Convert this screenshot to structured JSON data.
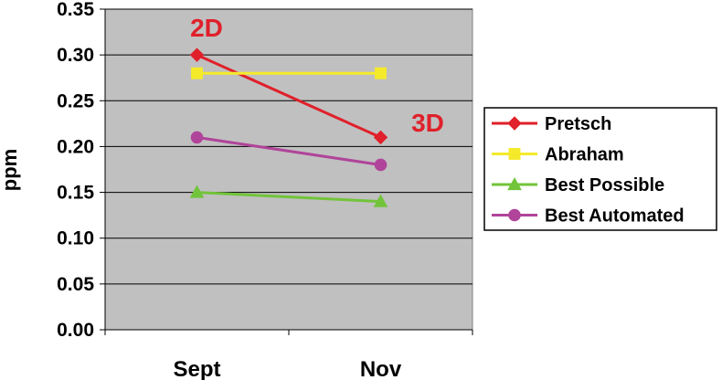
{
  "chart_data": {
    "type": "line",
    "categories": [
      "Sept",
      "Nov"
    ],
    "ylabel": "ppm",
    "ylim": [
      0,
      0.35
    ],
    "yticks": [
      "0.00",
      "0.05",
      "0.10",
      "0.15",
      "0.20",
      "0.25",
      "0.30",
      "0.35"
    ],
    "grid": true,
    "plot_background": "#c0c0c0",
    "legend_position": "right",
    "annotations": [
      {
        "text": "2D",
        "near": "Sept",
        "color": "#e0202a"
      },
      {
        "text": "3D",
        "near": "Nov",
        "color": "#e0202a"
      }
    ],
    "series": [
      {
        "name": "Pretsch",
        "values": [
          0.3,
          0.21
        ],
        "color": "#e0202a",
        "marker": "diamond"
      },
      {
        "name": "Abraham",
        "values": [
          0.28,
          0.28
        ],
        "color": "#f5ea2a",
        "marker": "square"
      },
      {
        "name": "Best Possible",
        "values": [
          0.15,
          0.14
        ],
        "color": "#72c43a",
        "marker": "triangle"
      },
      {
        "name": "Best Automated",
        "values": [
          0.21,
          0.18
        ],
        "color": "#b0449a",
        "marker": "circle"
      }
    ]
  }
}
